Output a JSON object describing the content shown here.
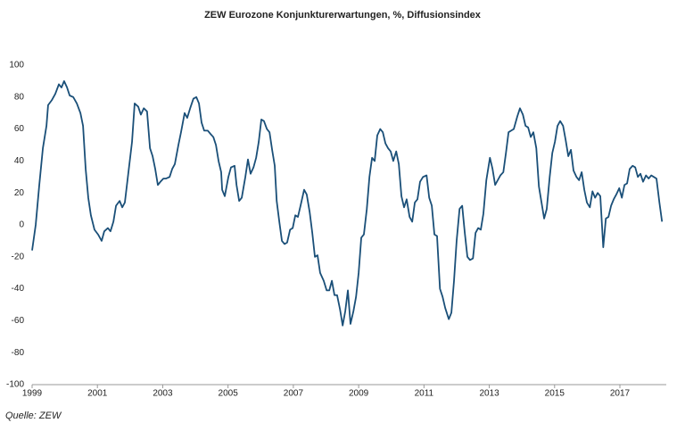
{
  "chart_data": {
    "type": "line",
    "title": "ZEW Eurozone Konjunkturerwartungen, %, Diffusionsindex",
    "source": "Quelle: ZEW",
    "x": [
      1999.0,
      1999.11,
      1999.22,
      1999.33,
      1999.44,
      1999.49,
      1999.6,
      1999.71,
      1999.82,
      1999.9,
      1999.98,
      2000.07,
      2000.15,
      2000.26,
      2000.37,
      2000.48,
      2000.56,
      2000.64,
      2000.72,
      2000.8,
      2000.91,
      2001.02,
      2001.13,
      2001.21,
      2001.32,
      2001.4,
      2001.49,
      2001.57,
      2001.68,
      2001.76,
      2001.84,
      2001.95,
      2002.06,
      2002.14,
      2002.25,
      2002.33,
      2002.42,
      2002.52,
      2002.61,
      2002.69,
      2002.77,
      2002.85,
      2002.93,
      2003.02,
      2003.1,
      2003.21,
      2003.29,
      2003.37,
      2003.48,
      2003.56,
      2003.67,
      2003.75,
      2003.84,
      2003.94,
      2004.03,
      2004.11,
      2004.19,
      2004.27,
      2004.38,
      2004.46,
      2004.55,
      2004.63,
      2004.71,
      2004.79,
      2004.82,
      2004.9,
      2005.01,
      2005.09,
      2005.2,
      2005.26,
      2005.34,
      2005.42,
      2005.53,
      2005.61,
      2005.69,
      2005.78,
      2005.86,
      2005.94,
      2006.02,
      2006.1,
      2006.19,
      2006.27,
      2006.35,
      2006.43,
      2006.49,
      2006.57,
      2006.65,
      2006.73,
      2006.81,
      2006.9,
      2006.98,
      2007.06,
      2007.14,
      2007.22,
      2007.33,
      2007.41,
      2007.5,
      2007.58,
      2007.66,
      2007.74,
      2007.82,
      2007.93,
      2008.02,
      2008.1,
      2008.18,
      2008.26,
      2008.34,
      2008.43,
      2008.51,
      2008.59,
      2008.67,
      2008.75,
      2008.84,
      2008.92,
      2009.0,
      2009.08,
      2009.16,
      2009.25,
      2009.33,
      2009.41,
      2009.49,
      2009.57,
      2009.66,
      2009.74,
      2009.82,
      2009.9,
      2009.98,
      2010.06,
      2010.15,
      2010.23,
      2010.31,
      2010.39,
      2010.47,
      2010.56,
      2010.64,
      2010.72,
      2010.8,
      2010.88,
      2010.97,
      2011.08,
      2011.16,
      2011.24,
      2011.32,
      2011.4,
      2011.49,
      2011.57,
      2011.65,
      2011.76,
      2011.84,
      2011.92,
      2012.0,
      2012.09,
      2012.17,
      2012.25,
      2012.33,
      2012.41,
      2012.5,
      2012.58,
      2012.66,
      2012.74,
      2012.82,
      2012.91,
      2013.02,
      2013.1,
      2013.18,
      2013.26,
      2013.34,
      2013.43,
      2013.51,
      2013.59,
      2013.67,
      2013.75,
      2013.86,
      2013.94,
      2014.03,
      2014.11,
      2014.19,
      2014.27,
      2014.35,
      2014.44,
      2014.52,
      2014.6,
      2014.68,
      2014.76,
      2014.85,
      2014.93,
      2015.01,
      2015.09,
      2015.17,
      2015.26,
      2015.34,
      2015.42,
      2015.5,
      2015.58,
      2015.67,
      2015.75,
      2015.83,
      2015.91,
      2015.99,
      2016.08,
      2016.16,
      2016.24,
      2016.32,
      2016.4,
      2016.49,
      2016.57,
      2016.65,
      2016.73,
      2016.81,
      2016.89,
      2016.98,
      2017.06,
      2017.14,
      2017.22,
      2017.3,
      2017.39,
      2017.47,
      2017.55,
      2017.63,
      2017.71,
      2017.8,
      2017.88,
      2017.96,
      2018.04,
      2018.12,
      2018.21,
      2018.29
    ],
    "series": [
      {
        "color": "#1a4f78",
        "values": [
          -16,
          0,
          25,
          48,
          62,
          75,
          78,
          82,
          88,
          86,
          90,
          86,
          81,
          80,
          76,
          70,
          62,
          35,
          17,
          6,
          -3,
          -6,
          -10,
          -4,
          -2,
          -4,
          2,
          12,
          15,
          11,
          14,
          33,
          52,
          76,
          74,
          69,
          73,
          71,
          48,
          43,
          35,
          25,
          27,
          29,
          29,
          30,
          35,
          38,
          50,
          58,
          70,
          67,
          73,
          79,
          80,
          76,
          64,
          59,
          59,
          57,
          55,
          50,
          40,
          33,
          22,
          18,
          30,
          36,
          37,
          25,
          15,
          17,
          30,
          41,
          32,
          36,
          42,
          52,
          66,
          65,
          60,
          58,
          47,
          37,
          15,
          2,
          -10,
          -12,
          -11,
          -3,
          -2,
          6,
          5,
          12,
          22,
          19,
          8,
          -5,
          -20,
          -19,
          -30,
          -35,
          -41,
          -41,
          -35,
          -44,
          -44,
          -53,
          -63,
          -54,
          -41,
          -62,
          -54,
          -45,
          -30,
          -8,
          -6,
          10,
          30,
          42,
          40,
          56,
          60,
          58,
          51,
          48,
          46,
          40,
          46,
          38,
          18,
          11,
          16,
          5,
          2,
          14,
          16,
          27,
          30,
          31,
          17,
          12,
          -6,
          -7,
          -40,
          -45,
          -52,
          -59,
          -55,
          -35,
          -10,
          10,
          12,
          -5,
          -20,
          -22,
          -21,
          -5,
          -2,
          -3,
          7,
          28,
          42,
          35,
          25,
          28,
          31,
          33,
          45,
          58,
          59,
          60,
          68,
          73,
          69,
          62,
          61,
          55,
          58,
          48,
          24,
          14,
          4,
          10,
          30,
          45,
          52,
          62,
          65,
          62,
          53,
          43,
          47,
          34,
          30,
          28,
          33,
          22,
          14,
          11,
          21,
          17,
          20,
          18,
          -14,
          4,
          5,
          12,
          16,
          19,
          23,
          17,
          25,
          26,
          35,
          37,
          36,
          30,
          32,
          27,
          31,
          29,
          31,
          30,
          29,
          14,
          2
        ]
      }
    ],
    "xlim": [
      1999,
      2018.42
    ],
    "xticks": [
      1999,
      2001,
      2003,
      2005,
      2007,
      2009,
      2011,
      2013,
      2015,
      2017
    ],
    "ylim": [
      -100,
      100
    ],
    "yticks": [
      -100,
      -80,
      -60,
      -40,
      -20,
      0,
      20,
      40,
      60,
      80,
      100
    ],
    "grid": false
  }
}
